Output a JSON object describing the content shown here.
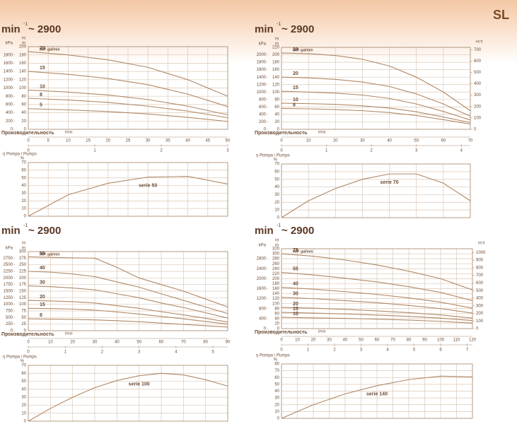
{
  "corner_label": "SL",
  "chart_data": [
    {
      "type": "line",
      "speed_label": "min",
      "speed_sup": "-1",
      "speed_value": "~ 2900",
      "ylabel_top": "Ht",
      "ylabel": "m",
      "y2label": "kPa",
      "unit_note": "IMP. gal/min",
      "xlabel": "Производительность",
      "xunit": "l/min",
      "grid": true,
      "x": [
        0,
        10,
        20,
        30,
        40,
        50
      ],
      "xlim": [
        0,
        50
      ],
      "xticks": [
        0,
        5,
        10,
        15,
        20,
        25,
        30,
        35,
        40,
        45,
        50
      ],
      "x2lim": [
        0,
        3
      ],
      "x2ticks": [
        0,
        1,
        2,
        3
      ],
      "ylim": [
        0,
        200
      ],
      "yticks": [
        0,
        20,
        40,
        60,
        80,
        100,
        120,
        140,
        160,
        180,
        200
      ],
      "y2lim": [
        0,
        2000
      ],
      "y2ticks": [
        0,
        200,
        400,
        600,
        800,
        1000,
        1200,
        1400,
        1600,
        1800
      ],
      "series": [
        {
          "name": "20",
          "color": "#b08866",
          "values": [
            188,
            180,
            168,
            150,
            120,
            80
          ]
        },
        {
          "name": "15",
          "color": "#b08866",
          "values": [
            140,
            133,
            123,
            108,
            85,
            55
          ]
        },
        {
          "name": "10",
          "color": "#b08866",
          "values": [
            95,
            90,
            83,
            72,
            56,
            35
          ]
        },
        {
          "name": "8",
          "color": "#b08866",
          "values": [
            75,
            71,
            65,
            56,
            44,
            28
          ]
        },
        {
          "name": "5",
          "color": "#b08866",
          "values": [
            50,
            47,
            43,
            37,
            29,
            19
          ]
        }
      ]
    },
    {
      "type": "line",
      "title": "η Pompa / Pumps",
      "ylabel": "%",
      "grid": true,
      "x": [
        0,
        10,
        20,
        30,
        40,
        50
      ],
      "xlim": [
        0,
        50
      ],
      "xticks": [
        0,
        5,
        10,
        15,
        20,
        25,
        30,
        35,
        40,
        45,
        50
      ],
      "ylim": [
        0,
        70
      ],
      "yticks": [
        0,
        10,
        20,
        30,
        40,
        50,
        60,
        70
      ],
      "series": [
        {
          "name": "serie 50",
          "color": "#b08866",
          "values": [
            0,
            28,
            43,
            51,
            52,
            42
          ]
        }
      ]
    },
    {
      "type": "line",
      "speed_label": "min",
      "speed_sup": "-1",
      "speed_value": "~ 2900",
      "ylabel_top": "Ht",
      "ylabel": "m",
      "y2label": "kPa",
      "y3label": "Ht ft",
      "unit_note": "IMP. gal/min",
      "xlabel": "Производительность",
      "xunit": "l/min",
      "grid": true,
      "x": [
        0,
        10,
        20,
        30,
        40,
        50,
        60,
        70
      ],
      "xlim": [
        0,
        70
      ],
      "xticks": [
        0,
        10,
        20,
        30,
        40,
        50,
        60,
        70
      ],
      "x2lim": [
        0,
        4.2
      ],
      "x2ticks": [
        0,
        1,
        2,
        3,
        4
      ],
      "ylim": [
        0,
        220
      ],
      "yticks": [
        0,
        20,
        40,
        60,
        80,
        100,
        120,
        140,
        160,
        180,
        200,
        220
      ],
      "y2lim": [
        0,
        2200
      ],
      "y2ticks": [
        0,
        200,
        400,
        600,
        800,
        1000,
        1200,
        1400,
        1600,
        1800,
        2000
      ],
      "y3lim": [
        0,
        720
      ],
      "y3ticks": [
        0,
        100,
        200,
        300,
        400,
        500,
        600,
        700
      ],
      "series": [
        {
          "name": "30",
          "color": "#b08866",
          "values": [
            205,
            203,
            198,
            188,
            170,
            140,
            100,
            50
          ]
        },
        {
          "name": "20",
          "color": "#b08866",
          "values": [
            140,
            138,
            134,
            127,
            115,
            95,
            68,
            35
          ]
        },
        {
          "name": "15",
          "color": "#b08866",
          "values": [
            102,
            100,
            97,
            92,
            83,
            68,
            48,
            25
          ]
        },
        {
          "name": "10",
          "color": "#b08866",
          "values": [
            70,
            69,
            67,
            63,
            57,
            47,
            33,
            18
          ]
        },
        {
          "name": "8",
          "color": "#b08866",
          "values": [
            56,
            55,
            53,
            50,
            45,
            37,
            26,
            14
          ]
        }
      ]
    },
    {
      "type": "line",
      "title": "η Pompa / Pumps",
      "ylabel": "%",
      "grid": true,
      "x": [
        0,
        10,
        20,
        30,
        40,
        50,
        60,
        70
      ],
      "xlim": [
        0,
        70
      ],
      "xticks": [
        0,
        10,
        20,
        30,
        40,
        50,
        60,
        70
      ],
      "ylim": [
        0,
        70
      ],
      "yticks": [
        0,
        10,
        20,
        30,
        40,
        50,
        60,
        70
      ],
      "series": [
        {
          "name": "serie 70",
          "color": "#b08866",
          "values": [
            0,
            22,
            38,
            50,
            57,
            57,
            45,
            22
          ]
        }
      ]
    },
    {
      "type": "line",
      "speed_label": "min",
      "speed_sup": "-1",
      "speed_value": "~ 2900",
      "ylabel_top": "Ht",
      "ylabel": "m",
      "y2label": "kPa",
      "unit_note": "IMP. gal/min",
      "xlabel": "Производительность",
      "xunit": "l/min",
      "grid": true,
      "x": [
        0,
        10,
        20,
        30,
        40,
        50,
        60,
        70,
        80,
        90
      ],
      "xlim": [
        0,
        90
      ],
      "xticks": [
        0,
        10,
        20,
        30,
        40,
        50,
        60,
        70,
        80,
        90
      ],
      "x2lim": [
        0,
        5.4
      ],
      "x2ticks": [
        0,
        1,
        2,
        3,
        4,
        5
      ],
      "ylim": [
        0,
        300
      ],
      "yticks": [
        0,
        25,
        50,
        75,
        100,
        125,
        150,
        175,
        200,
        225,
        250,
        275,
        300
      ],
      "y2lim": [
        0,
        3000
      ],
      "y2ticks": [
        0,
        250,
        500,
        750,
        1000,
        1250,
        1500,
        1750,
        2000,
        2250,
        2500,
        2750
      ],
      "series": [
        {
          "name": "55",
          "color": "#b08866",
          "values": [
            280,
            278,
            276,
            275,
            240,
            200,
            175,
            150,
            120,
            90
          ]
        },
        {
          "name": "40",
          "color": "#b08866",
          "values": [
            225,
            222,
            215,
            205,
            185,
            165,
            140,
            115,
            90,
            65
          ]
        },
        {
          "name": "30",
          "color": "#b08866",
          "values": [
            170,
            167,
            162,
            155,
            140,
            125,
            105,
            88,
            68,
            48
          ]
        },
        {
          "name": "20",
          "color": "#b08866",
          "values": [
            115,
            113,
            110,
            105,
            95,
            85,
            72,
            60,
            47,
            33
          ]
        },
        {
          "name": "15",
          "color": "#b08866",
          "values": [
            85,
            84,
            82,
            78,
            71,
            63,
            54,
            45,
            35,
            25
          ]
        },
        {
          "name": "8",
          "color": "#b08866",
          "values": [
            45,
            44,
            43,
            41,
            38,
            34,
            29,
            24,
            19,
            14
          ]
        }
      ]
    },
    {
      "type": "line",
      "title": "η Pompa / Pumps",
      "ylabel": "%",
      "grid": true,
      "x": [
        0,
        10,
        20,
        30,
        40,
        50,
        60,
        70,
        80,
        90
      ],
      "xlim": [
        0,
        90
      ],
      "xticks": [
        0,
        10,
        20,
        30,
        40,
        50,
        60,
        70,
        80,
        90
      ],
      "ylim": [
        0,
        70
      ],
      "yticks": [
        0,
        10,
        20,
        30,
        40,
        50,
        60,
        70
      ],
      "series": [
        {
          "name": "serie 100",
          "color": "#b08866",
          "values": [
            0,
            16,
            30,
            42,
            51,
            57,
            60,
            58,
            52,
            44
          ]
        }
      ]
    },
    {
      "type": "line",
      "speed_label": "min",
      "speed_sup": "-1",
      "speed_value": "~ 2900",
      "ylabel_top": "Ht",
      "ylabel": "m",
      "y2label": "kPa",
      "y3label": "Ht ft",
      "unit_note": "IMP. gal/min",
      "xlabel": "Производительность",
      "xunit": "l/min",
      "grid": true,
      "x": [
        0,
        20,
        40,
        60,
        80,
        100,
        120
      ],
      "xlim": [
        0,
        120
      ],
      "xticks": [
        0,
        10,
        20,
        30,
        40,
        50,
        60,
        70,
        80,
        90,
        100,
        110,
        120
      ],
      "x2lim": [
        0,
        7.2
      ],
      "x2ticks": [
        0,
        1,
        2,
        3,
        4,
        5,
        6,
        7
      ],
      "ylim": [
        0,
        320
      ],
      "yticks": [
        0,
        20,
        40,
        60,
        80,
        100,
        120,
        140,
        160,
        180,
        200,
        220,
        240,
        260,
        280,
        300,
        320
      ],
      "y2lim": [
        0,
        3200
      ],
      "y2ticks": [
        0,
        400,
        800,
        1200,
        1600,
        2000,
        2400,
        2800
      ],
      "y3lim": [
        0,
        1050
      ],
      "y3ticks": [
        0,
        100,
        200,
        300,
        400,
        500,
        600,
        700,
        800,
        900,
        1000
      ],
      "series": [
        {
          "name": "75",
          "color": "#b08866",
          "values": [
            300,
            290,
            275,
            255,
            230,
            200,
            155
          ]
        },
        {
          "name": "55",
          "color": "#b08866",
          "values": [
            225,
            215,
            202,
            187,
            168,
            145,
            112
          ]
        },
        {
          "name": "40",
          "color": "#b08866",
          "values": [
            165,
            158,
            148,
            137,
            123,
            106,
            82
          ]
        },
        {
          "name": "30",
          "color": "#b08866",
          "values": [
            125,
            120,
            112,
            104,
            93,
            80,
            62
          ]
        },
        {
          "name": "20",
          "color": "#b08866",
          "values": [
            85,
            82,
            77,
            71,
            64,
            55,
            42
          ]
        },
        {
          "name": "15",
          "color": "#b08866",
          "values": [
            65,
            62,
            59,
            54,
            49,
            42,
            32
          ]
        },
        {
          "name": "10",
          "color": "#b08866",
          "values": [
            45,
            43,
            41,
            38,
            34,
            29,
            22
          ]
        }
      ]
    },
    {
      "type": "line",
      "title": "η Pompa / Pumps",
      "ylabel": "%",
      "grid": true,
      "x": [
        0,
        20,
        40,
        60,
        80,
        100,
        120
      ],
      "xlim": [
        0,
        120
      ],
      "xticks": [
        0,
        10,
        20,
        30,
        40,
        50,
        60,
        70,
        80,
        90,
        100,
        110,
        120
      ],
      "ylim": [
        0,
        80
      ],
      "yticks": [
        0,
        10,
        20,
        30,
        40,
        50,
        60,
        70,
        80
      ],
      "series": [
        {
          "name": "serie 140",
          "color": "#b08866",
          "values": [
            0,
            20,
            36,
            48,
            57,
            62,
            61
          ]
        }
      ]
    }
  ]
}
